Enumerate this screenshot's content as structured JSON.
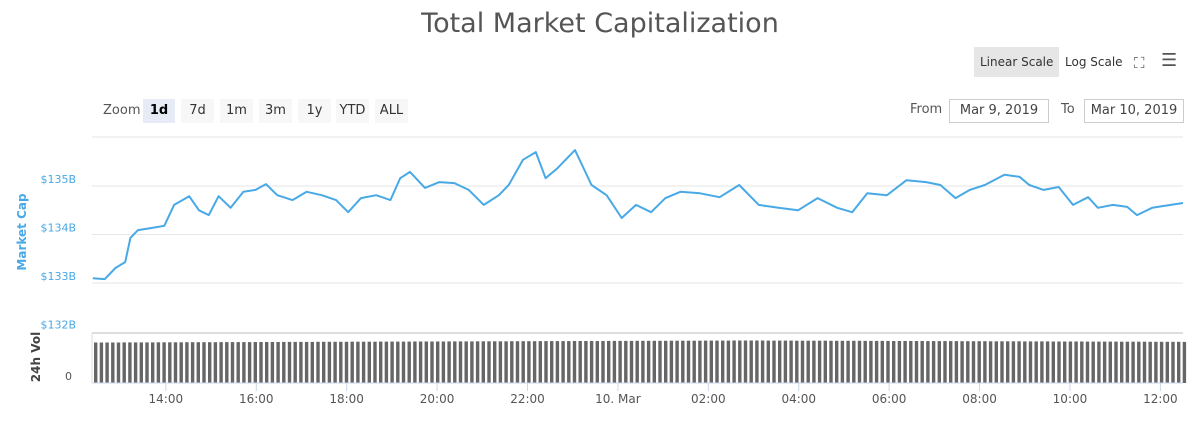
{
  "title": "Total Market Capitalization",
  "toolbar": {
    "linear": "Linear Scale",
    "log": "Log Scale",
    "active": "Linear Scale"
  },
  "zoom": {
    "label": "Zoom",
    "buttons": [
      "1d",
      "7d",
      "1m",
      "3m",
      "1y",
      "YTD",
      "ALL"
    ],
    "active": "1d"
  },
  "range": {
    "from_label": "From",
    "from": "Mar 9, 2019",
    "to_label": "To",
    "to": "Mar 10, 2019"
  },
  "colors": {
    "line": "#48a9e6",
    "volume": "#666666",
    "grid": "#e6e6e6"
  },
  "chart_data": [
    {
      "type": "line",
      "ylabel": "Market Cap",
      "ylim": [
        132,
        135.8
      ],
      "yticks": [
        "$132B",
        "$133B",
        "$134B",
        "$135B"
      ],
      "ytick_values": [
        132,
        133,
        134,
        135
      ],
      "xlim": [
        "2019-03-09T12:22",
        "2019-03-10T12:30"
      ],
      "xticks": [
        "14:00",
        "16:00",
        "18:00",
        "20:00",
        "22:00",
        "10. Mar",
        "02:00",
        "04:00",
        "06:00",
        "08:00",
        "10:00",
        "12:00"
      ],
      "xtick_times": [
        "2019-03-09T14:00",
        "2019-03-09T16:00",
        "2019-03-09T18:00",
        "2019-03-09T20:00",
        "2019-03-09T22:00",
        "2019-03-10T00:00",
        "2019-03-10T02:00",
        "2019-03-10T04:00",
        "2019-03-10T06:00",
        "2019-03-10T08:00",
        "2019-03-10T10:00",
        "2019-03-10T12:00"
      ],
      "grid": true,
      "unit": "billion USD",
      "x": [
        "2019-03-09T12:23",
        "2019-03-09T12:39",
        "2019-03-09T12:53",
        "2019-03-09T13:06",
        "2019-03-09T13:13",
        "2019-03-09T13:23",
        "2019-03-09T13:39",
        "2019-03-09T13:58",
        "2019-03-09T14:11",
        "2019-03-09T14:31",
        "2019-03-09T14:44",
        "2019-03-09T14:57",
        "2019-03-09T15:10",
        "2019-03-09T15:26",
        "2019-03-09T15:43",
        "2019-03-09T15:59",
        "2019-03-09T16:13",
        "2019-03-09T16:28",
        "2019-03-09T16:48",
        "2019-03-09T17:07",
        "2019-03-09T17:27",
        "2019-03-09T17:46",
        "2019-03-09T18:02",
        "2019-03-09T18:19",
        "2019-03-09T18:39",
        "2019-03-09T18:58",
        "2019-03-09T19:11",
        "2019-03-09T19:24",
        "2019-03-09T19:44",
        "2019-03-09T20:03",
        "2019-03-09T20:23",
        "2019-03-09T20:42",
        "2019-03-09T21:02",
        "2019-03-09T21:22",
        "2019-03-09T21:35",
        "2019-03-09T21:54",
        "2019-03-09T22:11",
        "2019-03-09T22:24",
        "2019-03-09T22:40",
        "2019-03-09T23:03",
        "2019-03-09T23:25",
        "2019-03-09T23:45",
        "2019-03-10T00:05",
        "2019-03-10T00:24",
        "2019-03-10T00:44",
        "2019-03-10T01:03",
        "2019-03-10T01:23",
        "2019-03-10T01:49",
        "2019-03-10T02:15",
        "2019-03-10T02:41",
        "2019-03-10T03:07",
        "2019-03-10T03:33",
        "2019-03-10T03:59",
        "2019-03-10T04:25",
        "2019-03-10T04:51",
        "2019-03-10T05:11",
        "2019-03-10T05:31",
        "2019-03-10T05:57",
        "2019-03-10T06:23",
        "2019-03-10T06:49",
        "2019-03-10T07:08",
        "2019-03-10T07:28",
        "2019-03-10T07:47",
        "2019-03-10T08:07",
        "2019-03-10T08:33",
        "2019-03-10T08:53",
        "2019-03-10T09:06",
        "2019-03-10T09:25",
        "2019-03-10T09:45",
        "2019-03-10T10:04",
        "2019-03-10T10:24",
        "2019-03-10T10:37",
        "2019-03-10T10:57",
        "2019-03-10T11:16",
        "2019-03-10T11:29",
        "2019-03-10T11:49",
        "2019-03-10T12:30"
      ],
      "values": [
        133.1,
        133.08,
        133.31,
        133.43,
        133.93,
        134.09,
        134.13,
        134.18,
        134.61,
        134.79,
        134.5,
        134.4,
        134.79,
        134.55,
        134.88,
        134.92,
        135.04,
        134.81,
        134.71,
        134.88,
        134.81,
        134.71,
        134.46,
        134.75,
        134.81,
        134.71,
        135.16,
        135.29,
        134.96,
        135.08,
        135.06,
        134.92,
        134.61,
        134.81,
        135.02,
        135.54,
        135.7,
        135.16,
        135.37,
        135.74,
        135.02,
        134.81,
        134.34,
        134.61,
        134.46,
        134.75,
        134.88,
        134.85,
        134.77,
        135.02,
        134.61,
        134.55,
        134.5,
        134.75,
        134.55,
        134.46,
        134.85,
        134.81,
        135.12,
        135.08,
        135.02,
        134.75,
        134.92,
        135.02,
        135.23,
        135.19,
        135.02,
        134.92,
        134.98,
        134.61,
        134.77,
        134.55,
        134.61,
        134.57,
        134.4,
        134.55,
        134.65
      ]
    },
    {
      "type": "bar",
      "ylabel": "24h Vol",
      "yticks": [
        "0"
      ],
      "volume_level": 0.85
    }
  ]
}
